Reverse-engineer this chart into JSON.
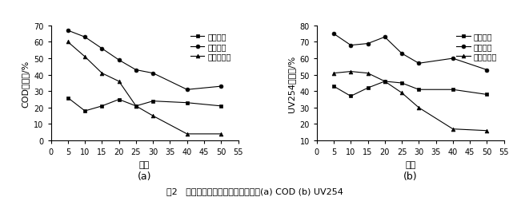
{
  "x": [
    5,
    10,
    15,
    20,
    25,
    30,
    40,
    50
  ],
  "chart_a": {
    "ozone": [
      26,
      18,
      21,
      25,
      21,
      24,
      23,
      21
    ],
    "cat_ozone": [
      67,
      63,
      56,
      49,
      43,
      41,
      31,
      33
    ],
    "ac_adsorb": [
      60,
      51,
      41,
      36,
      21,
      15,
      4,
      4
    ],
    "ylabel": "COD去除率/%",
    "ylim": [
      0,
      70
    ],
    "yticks": [
      0,
      10,
      20,
      30,
      40,
      50,
      60,
      70
    ],
    "xlabel": "批次",
    "label_a": "(a)"
  },
  "chart_b": {
    "ozone": [
      43,
      37,
      42,
      46,
      45,
      41,
      41,
      38
    ],
    "cat_ozone": [
      75,
      68,
      69,
      73,
      63,
      57,
      60,
      53
    ],
    "ac_adsorb": [
      51,
      52,
      51,
      46,
      39,
      30,
      17,
      16
    ],
    "ylabel": "UV254去除率/%",
    "ylim": [
      10,
      80
    ],
    "yticks": [
      10,
      20,
      30,
      40,
      50,
      60,
      70,
      80
    ],
    "xlabel": "批次",
    "label_b": "(b)"
  },
  "legend_labels": [
    "臭氧氧化",
    "催化臭氧",
    "活性炭吸附"
  ],
  "xlim": [
    0,
    55
  ],
  "xticks": [
    0,
    5,
    10,
    15,
    20,
    25,
    30,
    35,
    40,
    45,
    50,
    55
  ],
  "markers": [
    "s",
    "o",
    "^"
  ],
  "caption_pre": "图2   活性炭对臭氧氧化效果的影响：(a) COD (b) UV",
  "caption_sub": "254",
  "fig_background": "white"
}
